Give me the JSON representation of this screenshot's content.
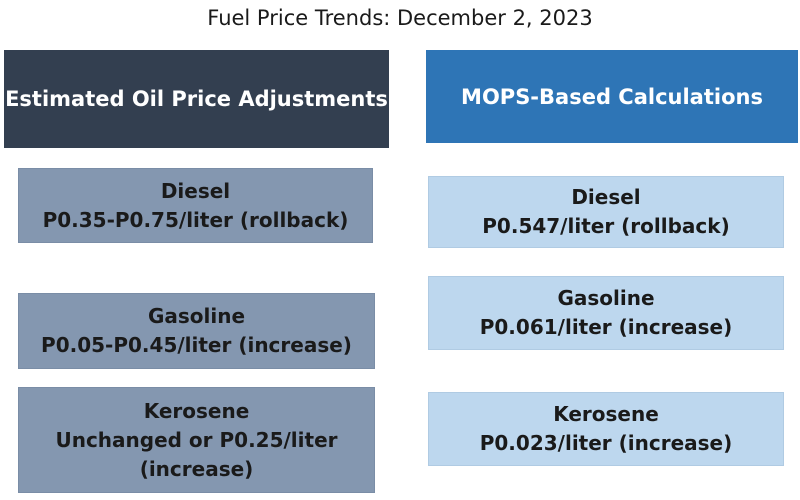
{
  "title": "Fuel Price Trends: December 2, 2023",
  "left": {
    "header": "Estimated Oil Price Adjustments",
    "items": [
      {
        "fuel": "Diesel",
        "detail": "P0.35-P0.75/liter (rollback)"
      },
      {
        "fuel": "Gasoline",
        "detail": "P0.05-P0.45/liter (increase)"
      },
      {
        "fuel": "Kerosene",
        "detail": "Unchanged or P0.25/liter",
        "detail2": "(increase)"
      }
    ]
  },
  "right": {
    "header": "MOPS-Based Calculations",
    "items": [
      {
        "fuel": "Diesel",
        "detail": "P0.547/liter (rollback)"
      },
      {
        "fuel": "Gasoline",
        "detail": "P0.061/liter (increase)"
      },
      {
        "fuel": "Kerosene",
        "detail": "P0.023/liter (increase)"
      }
    ]
  },
  "colors": {
    "left_header": "#333f50",
    "right_header": "#2e75b6",
    "left_item": "#8497b0",
    "right_item": "#bdd7ee"
  }
}
